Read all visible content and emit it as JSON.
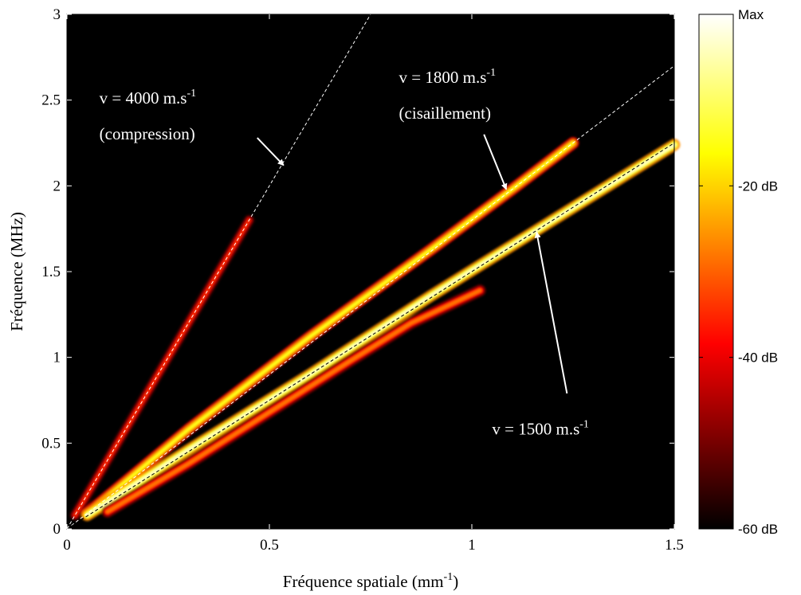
{
  "chart_data": {
    "type": "heatmap",
    "xlabel": "Fréquence spatiale (mm",
    "xlabel_sup": "-1",
    "xlabel_end": ")",
    "ylabel": "Fréquence (MHz)",
    "xlim": [
      0,
      1.5
    ],
    "ylim": [
      0,
      3
    ],
    "xticks": [
      0,
      0.5,
      1,
      1.5
    ],
    "xtick_labels": [
      "0",
      "0.5",
      "1",
      "1.5"
    ],
    "yticks": [
      0,
      0.5,
      1,
      1.5,
      2,
      2.5,
      3
    ],
    "ytick_labels": [
      "0",
      "0.5",
      "1",
      "1.5",
      "2",
      "2.5",
      "3"
    ],
    "background": "#000000",
    "colormap": "hot",
    "colorbar": {
      "ticks": [
        0,
        -20,
        -40,
        -60
      ],
      "labels": [
        "Max",
        "-20 dB",
        "-40 dB",
        "-60 dB"
      ],
      "range_db": [
        -60,
        0
      ]
    },
    "reference_lines": [
      {
        "velocity": 4000,
        "slope": 4,
        "color": "#ffffff",
        "style": "dashed"
      },
      {
        "velocity": 1800,
        "slope": 1.8,
        "color": "#ffffff",
        "style": "dashed"
      },
      {
        "velocity": 1500,
        "slope": 1.5,
        "color": "#000000",
        "style": "dashed"
      }
    ],
    "branches": [
      {
        "name": "compression",
        "points": [
          [
            0.02,
            0.08
          ],
          [
            0.2,
            0.8
          ],
          [
            0.3,
            1.2
          ],
          [
            0.4,
            1.6
          ],
          [
            0.45,
            1.8
          ]
        ],
        "level_db": -35
      },
      {
        "name": "cisaillement",
        "points": [
          [
            0.05,
            0.09
          ],
          [
            0.3,
            0.58
          ],
          [
            0.6,
            1.12
          ],
          [
            0.9,
            1.63
          ],
          [
            1.1,
            1.98
          ],
          [
            1.25,
            2.25
          ]
        ],
        "level_db": -15
      },
      {
        "name": "eau",
        "points": [
          [
            0.05,
            0.08
          ],
          [
            0.3,
            0.46
          ],
          [
            0.6,
            0.9
          ],
          [
            0.9,
            1.36
          ],
          [
            1.2,
            1.8
          ],
          [
            1.5,
            2.24
          ]
        ],
        "level_db": -4
      },
      {
        "name": "branche-inferieure",
        "points": [
          [
            0.1,
            0.1
          ],
          [
            0.3,
            0.38
          ],
          [
            0.5,
            0.68
          ],
          [
            0.7,
            0.98
          ],
          [
            0.85,
            1.2
          ],
          [
            1.02,
            1.39
          ]
        ],
        "level_db": -28
      }
    ],
    "annotations": [
      {
        "line1": "v = 4000 m.s",
        "sup": "-1",
        "line2": "(compression)",
        "text_at": [
          0.08,
          2.48
        ],
        "arrow_from": [
          0.47,
          2.28
        ],
        "arrow_to": [
          0.535,
          2.12
        ]
      },
      {
        "line1": "v = 1800 m.s",
        "sup": "-1",
        "line2": "(cisaillement)",
        "text_at": [
          0.82,
          2.6
        ],
        "arrow_from": [
          1.03,
          2.3
        ],
        "arrow_to": [
          1.085,
          1.98
        ]
      },
      {
        "line1": "v = 1500 m.s",
        "sup": "-1",
        "line2": "",
        "text_at": [
          1.05,
          0.55
        ],
        "arrow_from": [
          1.235,
          0.79
        ],
        "arrow_to": [
          1.16,
          1.73
        ]
      }
    ]
  }
}
